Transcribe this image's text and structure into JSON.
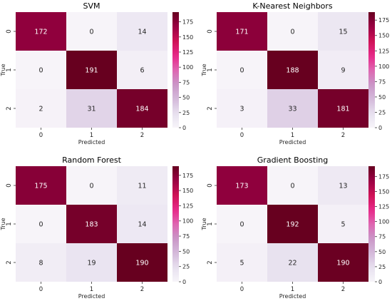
{
  "chart_data": [
    {
      "type": "heatmap",
      "title": "SVM",
      "xlabel": "Predicted",
      "ylabel": "True",
      "x_categories": [
        "0",
        "1",
        "2"
      ],
      "y_categories": [
        "0",
        "1",
        "2"
      ],
      "matrix": [
        [
          172,
          0,
          14
        ],
        [
          0,
          191,
          6
        ],
        [
          2,
          31,
          184
        ]
      ],
      "colorbar": {
        "min": 0,
        "max": 191,
        "ticks": [
          0,
          25,
          50,
          75,
          100,
          125,
          150,
          175
        ]
      }
    },
    {
      "type": "heatmap",
      "title": "K-Nearest Neighbors",
      "xlabel": "Predicted",
      "ylabel": "True",
      "x_categories": [
        "0",
        "1",
        "2"
      ],
      "y_categories": [
        "0",
        "1",
        "2"
      ],
      "matrix": [
        [
          171,
          0,
          15
        ],
        [
          0,
          188,
          9
        ],
        [
          3,
          33,
          181
        ]
      ],
      "colorbar": {
        "min": 0,
        "max": 188,
        "ticks": [
          0,
          25,
          50,
          75,
          100,
          125,
          150,
          175
        ]
      }
    },
    {
      "type": "heatmap",
      "title": "Random Forest",
      "xlabel": "Predicted",
      "ylabel": "True",
      "x_categories": [
        "0",
        "1",
        "2"
      ],
      "y_categories": [
        "0",
        "1",
        "2"
      ],
      "matrix": [
        [
          175,
          0,
          11
        ],
        [
          0,
          183,
          14
        ],
        [
          8,
          19,
          190
        ]
      ],
      "colorbar": {
        "min": 0,
        "max": 190,
        "ticks": [
          0,
          25,
          50,
          75,
          100,
          125,
          150,
          175
        ]
      }
    },
    {
      "type": "heatmap",
      "title": "Gradient Boosting",
      "xlabel": "Predicted",
      "ylabel": "True",
      "x_categories": [
        "0",
        "1",
        "2"
      ],
      "y_categories": [
        "0",
        "1",
        "2"
      ],
      "matrix": [
        [
          173,
          0,
          13
        ],
        [
          0,
          192,
          5
        ],
        [
          5,
          22,
          190
        ]
      ],
      "colorbar": {
        "min": 0,
        "max": 192,
        "ticks": [
          0,
          25,
          50,
          75,
          100,
          125,
          150,
          175
        ]
      }
    }
  ],
  "colors": {
    "low": "#f7f4f9",
    "mid": "#c994c7",
    "high": "#980043",
    "darkest": "#67001f",
    "text_dark": "#262626",
    "text_light": "#ffffff"
  }
}
